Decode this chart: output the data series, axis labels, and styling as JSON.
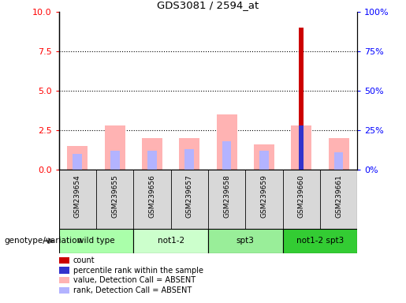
{
  "title": "GDS3081 / 2594_at",
  "samples": [
    "GSM239654",
    "GSM239655",
    "GSM239656",
    "GSM239657",
    "GSM239658",
    "GSM239659",
    "GSM239660",
    "GSM239661"
  ],
  "count_values": [
    0.0,
    0.0,
    0.0,
    0.0,
    0.0,
    0.0,
    9.0,
    0.0
  ],
  "percentile_rank_values": [
    0.0,
    0.0,
    0.0,
    0.0,
    0.0,
    0.0,
    2.8,
    0.0
  ],
  "absent_value_values": [
    1.5,
    2.8,
    2.0,
    2.0,
    3.5,
    1.6,
    2.8,
    2.0
  ],
  "absent_rank_values": [
    1.0,
    1.2,
    1.2,
    1.3,
    1.8,
    1.2,
    0.0,
    1.1
  ],
  "left_ylim": [
    0,
    10
  ],
  "right_ylim": [
    0,
    100
  ],
  "left_yticks": [
    0,
    2.5,
    5,
    7.5,
    10
  ],
  "right_yticks": [
    0,
    25,
    50,
    75,
    100
  ],
  "dotted_gridlines": [
    2.5,
    5.0,
    7.5
  ],
  "count_color": "#cc0000",
  "percentile_color": "#3333cc",
  "absent_value_color": "#ffb3b3",
  "absent_rank_color": "#b3b3ff",
  "group_spans": [
    {
      "label": "wild type",
      "start": 0,
      "end": 1,
      "color": "#aaffaa"
    },
    {
      "label": "not1-2",
      "start": 2,
      "end": 3,
      "color": "#ccffcc"
    },
    {
      "label": "spt3",
      "start": 4,
      "end": 5,
      "color": "#99ee99"
    },
    {
      "label": "not1-2 spt3",
      "start": 6,
      "end": 7,
      "color": "#33cc33"
    }
  ],
  "legend_items": [
    {
      "color": "#cc0000",
      "label": "count"
    },
    {
      "color": "#3333cc",
      "label": "percentile rank within the sample"
    },
    {
      "color": "#ffb3b3",
      "label": "value, Detection Call = ABSENT"
    },
    {
      "color": "#b3b3ff",
      "label": "rank, Detection Call = ABSENT"
    }
  ],
  "genotype_label": "genotype/variation"
}
